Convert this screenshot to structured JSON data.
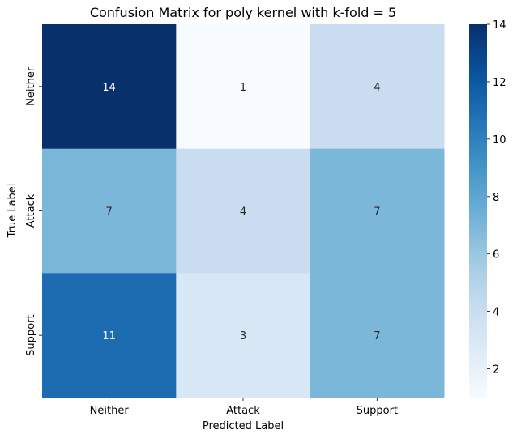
{
  "chart_data": {
    "type": "heatmap",
    "title": "Confusion Matrix for poly kernel with k-fold = 5",
    "xlabel": "Predicted Label",
    "ylabel": "True Label",
    "x_categories": [
      "Neither",
      "Attack",
      "Support"
    ],
    "y_categories": [
      "Neither",
      "Attack",
      "Support"
    ],
    "values": [
      [
        14,
        1,
        4
      ],
      [
        7,
        4,
        7
      ],
      [
        11,
        3,
        7
      ]
    ],
    "colorbar": {
      "min": 1,
      "max": 14,
      "ticks": [
        2,
        4,
        6,
        8,
        10,
        12,
        14
      ],
      "colormap": "Blues"
    },
    "grid": false
  }
}
